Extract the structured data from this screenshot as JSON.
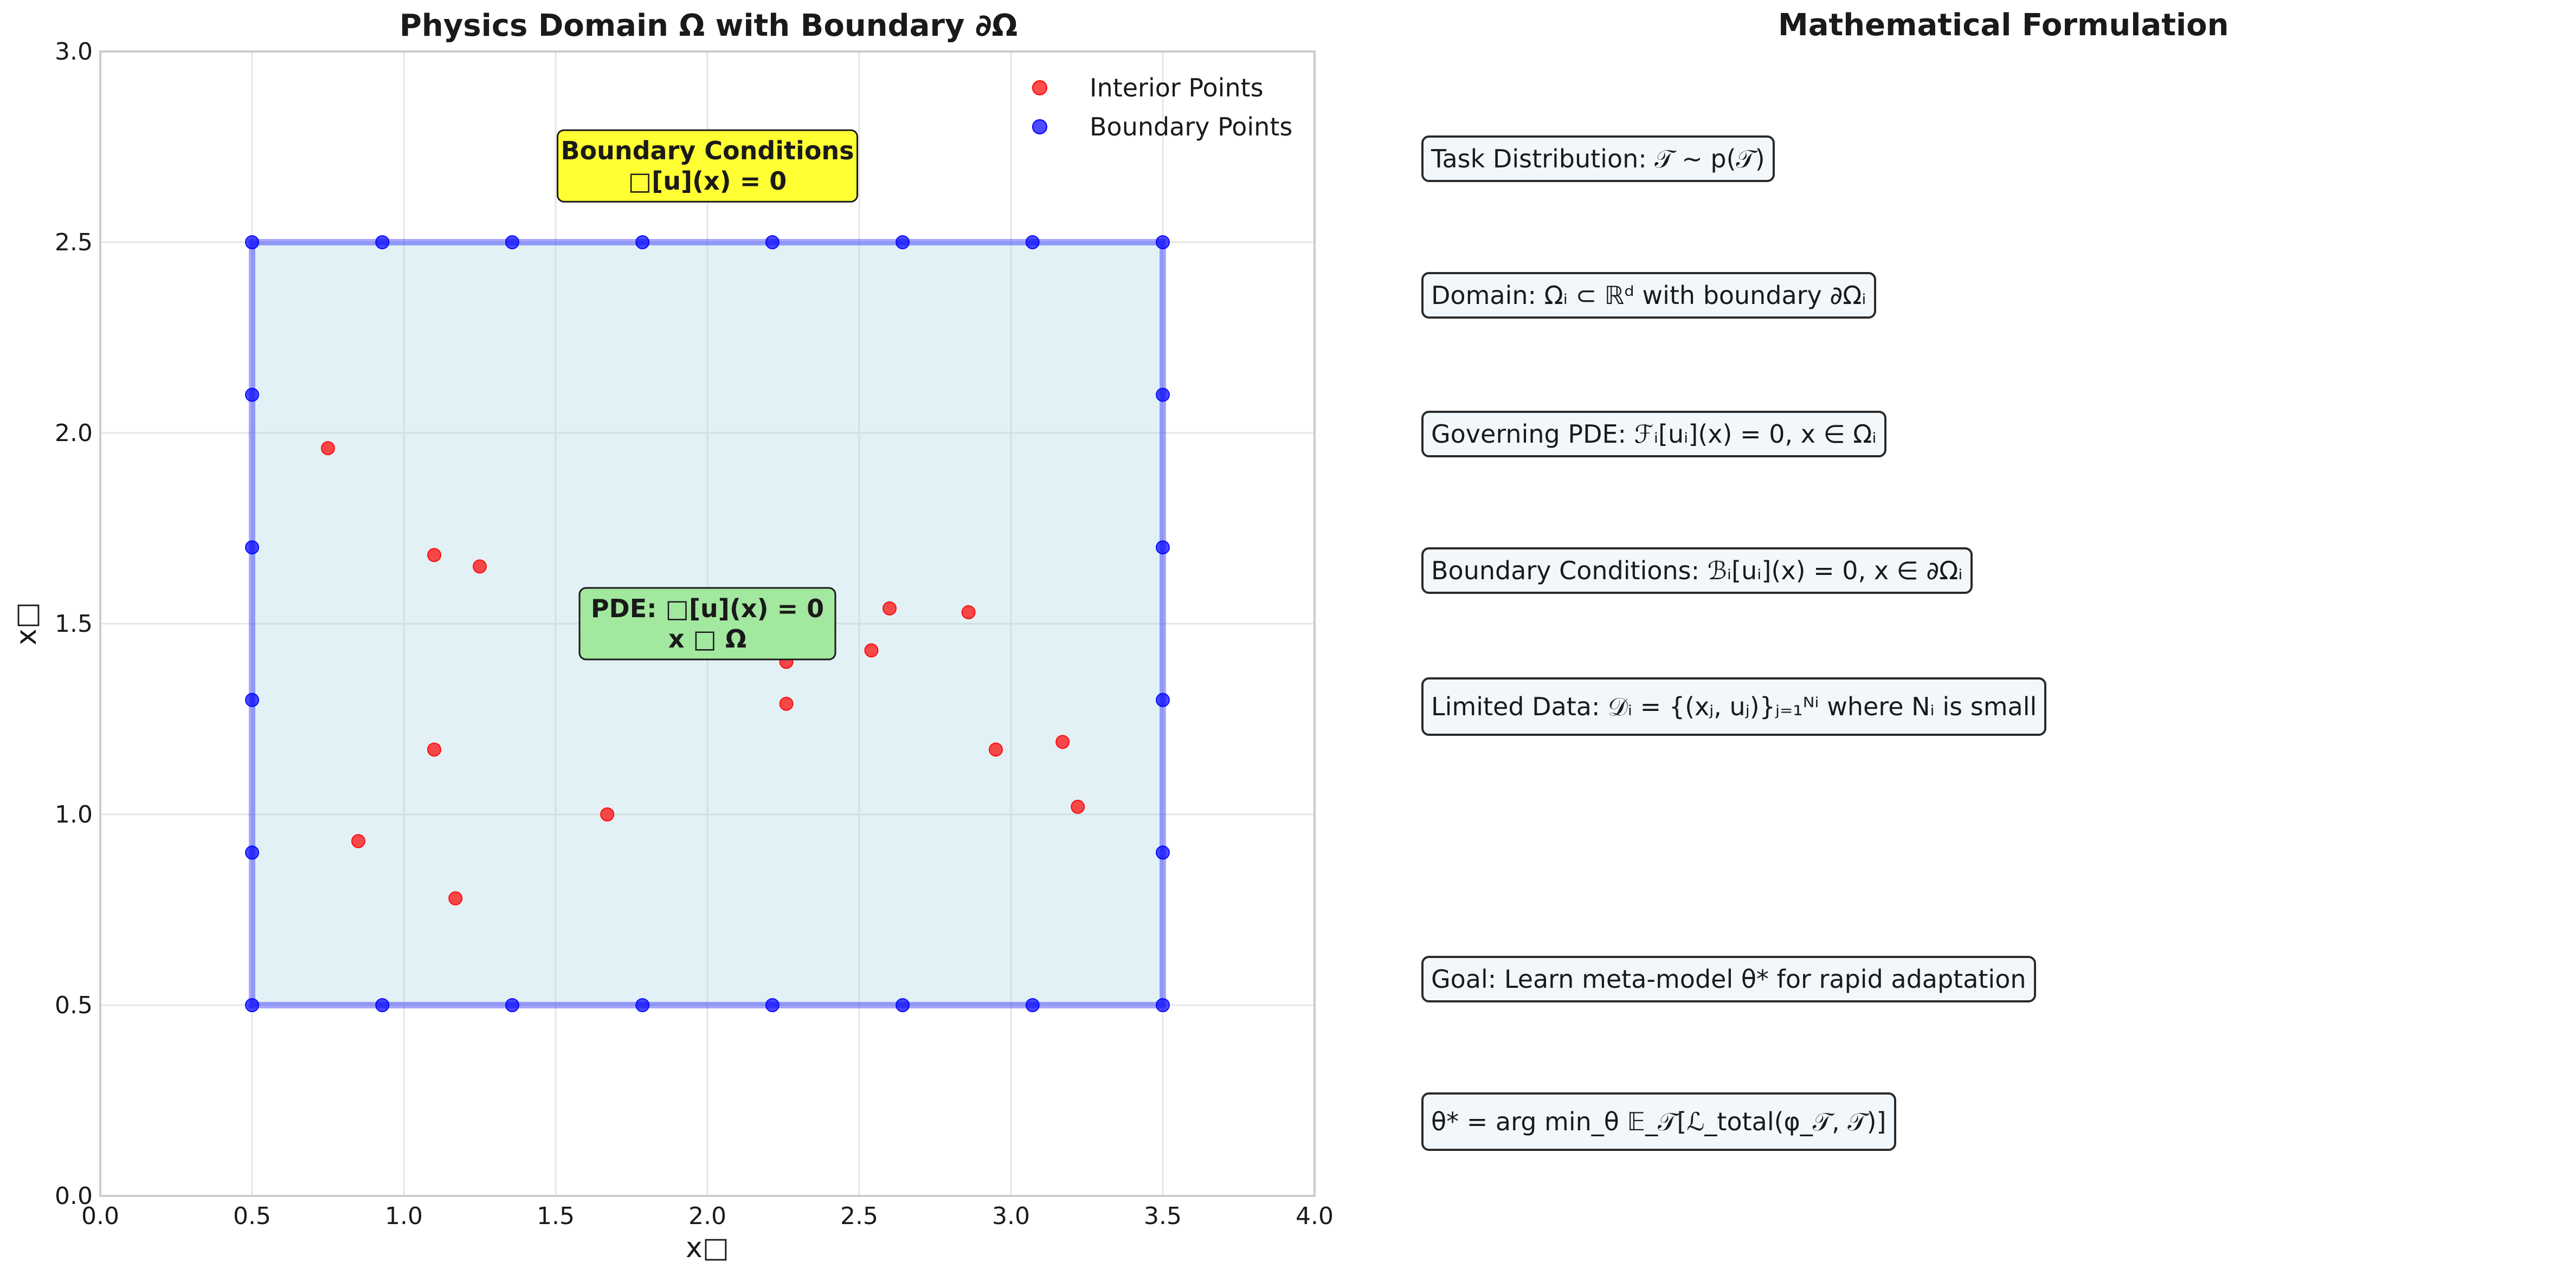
{
  "chart_data": [
    {
      "type": "scatter",
      "title": "Physics Domain Ω with Boundary ∂Ω",
      "xlabel": "x□",
      "ylabel": "x□",
      "xlim": [
        0.0,
        4.0
      ],
      "ylim": [
        0.0,
        3.0
      ],
      "xticks": [
        "0.0",
        "0.5",
        "1.0",
        "1.5",
        "2.0",
        "2.5",
        "3.0",
        "3.5",
        "4.0"
      ],
      "yticks": [
        "0.0",
        "0.5",
        "1.0",
        "1.5",
        "2.0",
        "2.5",
        "3.0"
      ],
      "grid": true,
      "legend_position": "top-right",
      "domain_rectangle": {
        "x0": 0.5,
        "x1": 3.5,
        "y0": 0.5,
        "y1": 2.5,
        "fill": "#add8e6",
        "edge": "#0000ff"
      },
      "series": [
        {
          "name": "Interior Points",
          "color": "#ff0000",
          "points": [
            [
              0.75,
              1.96
            ],
            [
              1.1,
              1.68
            ],
            [
              1.25,
              1.65
            ],
            [
              2.6,
              1.54
            ],
            [
              2.86,
              1.53
            ],
            [
              2.26,
              1.4
            ],
            [
              2.54,
              1.43
            ],
            [
              2.26,
              1.29
            ],
            [
              1.1,
              1.17
            ],
            [
              2.95,
              1.17
            ],
            [
              3.17,
              1.19
            ],
            [
              3.22,
              1.02
            ],
            [
              1.67,
              1.0
            ],
            [
              0.85,
              0.93
            ],
            [
              1.17,
              0.78
            ]
          ]
        },
        {
          "name": "Boundary Points",
          "color": "#0000ff",
          "points": [
            [
              0.5,
              0.5
            ],
            [
              0.929,
              0.5
            ],
            [
              1.357,
              0.5
            ],
            [
              1.786,
              0.5
            ],
            [
              2.214,
              0.5
            ],
            [
              2.643,
              0.5
            ],
            [
              3.071,
              0.5
            ],
            [
              3.5,
              0.5
            ],
            [
              0.5,
              2.5
            ],
            [
              0.929,
              2.5
            ],
            [
              1.357,
              2.5
            ],
            [
              1.786,
              2.5
            ],
            [
              2.214,
              2.5
            ],
            [
              2.643,
              2.5
            ],
            [
              3.071,
              2.5
            ],
            [
              3.5,
              2.5
            ],
            [
              0.5,
              0.9
            ],
            [
              0.5,
              1.3
            ],
            [
              0.5,
              1.7
            ],
            [
              0.5,
              2.1
            ],
            [
              3.5,
              0.9
            ],
            [
              3.5,
              1.3
            ],
            [
              3.5,
              1.7
            ],
            [
              3.5,
              2.1
            ]
          ]
        }
      ],
      "annotations": [
        {
          "lines": [
            "Boundary Conditions",
            "□[u](x) = 0"
          ],
          "x": 2.0,
          "y": 2.7,
          "bg": "#ffff33"
        },
        {
          "lines": [
            "PDE: □[u](x) = 0",
            "x □ Ω"
          ],
          "x": 2.0,
          "y": 1.5,
          "bg": "#a3e89f"
        }
      ]
    }
  ],
  "formulation": {
    "title": "Mathematical Formulation",
    "items": [
      {
        "text": "Task Distribution: 𝒯 ∼ p(𝒯)"
      },
      {
        "text": "Domain: Ωᵢ ⊂ ℝᵈ with boundary ∂Ωᵢ"
      },
      {
        "text": "Governing PDE: ℱᵢ[uᵢ](x) = 0,    x ∈ Ωᵢ"
      },
      {
        "text": "Boundary Conditions: ℬᵢ[uᵢ](x) = 0,    x ∈ ∂Ωᵢ"
      },
      {
        "text": "Limited Data: 𝒟ᵢ = {(xⱼ, uⱼ)}ⱼ₌₁ᴺⁱ where Nᵢ is small"
      },
      {
        "text": "Goal: Learn meta-model θ* for rapid adaptation"
      },
      {
        "text": "θ* = arg min_θ 𝔼_𝒯[ℒ_total(φ_𝒯, 𝒯)]"
      }
    ]
  }
}
